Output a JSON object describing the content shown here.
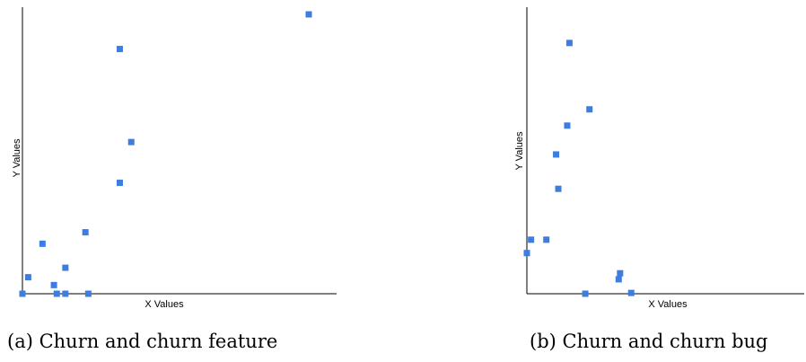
{
  "chart_data": [
    {
      "type": "scatter",
      "xlabel": "X Values",
      "ylabel": "Y Values",
      "xlim": [
        0,
        100
      ],
      "ylim": [
        0,
        100
      ],
      "grid": false,
      "ticks": false,
      "marker_color": "#3c7ddf",
      "caption": "(a) Churn and churn feature",
      "points": [
        {
          "x": 0.0,
          "y": 0.0
        },
        {
          "x": 2.0,
          "y": 5.9
        },
        {
          "x": 7.0,
          "y": 17.9
        },
        {
          "x": 11.0,
          "y": 3.1
        },
        {
          "x": 12.0,
          "y": 0.0
        },
        {
          "x": 15.0,
          "y": 9.3
        },
        {
          "x": 15.0,
          "y": 0.0
        },
        {
          "x": 22.0,
          "y": 22.0
        },
        {
          "x": 23.0,
          "y": 0.0
        },
        {
          "x": 34.0,
          "y": 39.7
        },
        {
          "x": 34.0,
          "y": 87.6
        },
        {
          "x": 38.0,
          "y": 54.3
        },
        {
          "x": 100.0,
          "y": 100.0
        }
      ]
    },
    {
      "type": "scatter",
      "xlabel": "X Values",
      "ylabel": "Y Values",
      "xlim": [
        0,
        100
      ],
      "ylim": [
        0,
        100
      ],
      "grid": false,
      "ticks": false,
      "marker_color": "#3c7ddf",
      "caption": "(b) Churn and churn bug",
      "points": [
        {
          "x": 0.0,
          "y": 15.5
        },
        {
          "x": 1.5,
          "y": 20.6
        },
        {
          "x": 7.0,
          "y": 20.6
        },
        {
          "x": 10.5,
          "y": 53.1
        },
        {
          "x": 11.3,
          "y": 40.0
        },
        {
          "x": 14.5,
          "y": 64.1
        },
        {
          "x": 15.3,
          "y": 95.6
        },
        {
          "x": 21.0,
          "y": 0.0
        },
        {
          "x": 22.5,
          "y": 70.3
        },
        {
          "x": 33.0,
          "y": 5.5
        },
        {
          "x": 33.5,
          "y": 7.8
        },
        {
          "x": 37.5,
          "y": 0.3
        }
      ]
    }
  ]
}
